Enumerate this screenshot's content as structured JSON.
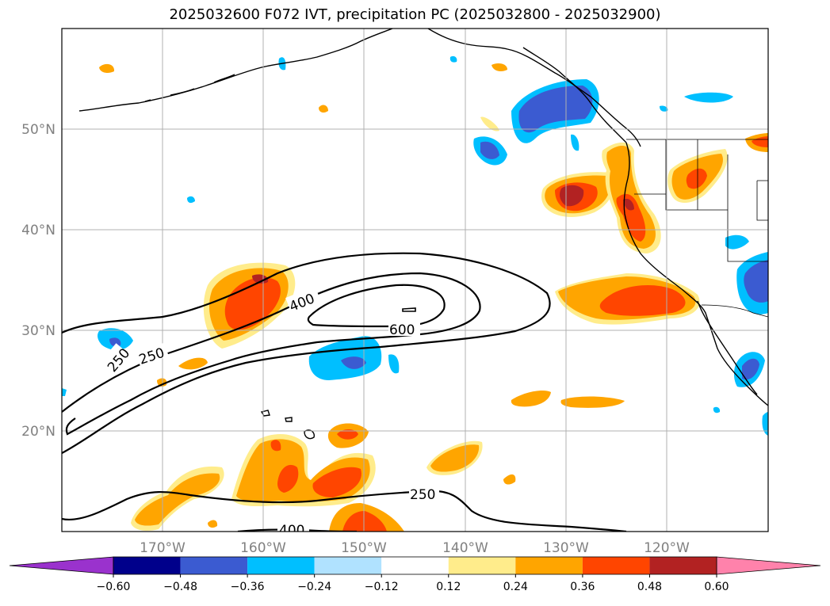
{
  "title": "2025032600 F072 IVT, precipitation PC (2025032800 - 2025032900)",
  "colors": {
    "neg_0": "#9a32cd",
    "neg_1": "#00008b",
    "neg_2": "#3b5bd1",
    "neg_3": "#00bfff",
    "neg_4": "#b0e2ff",
    "zero": "#ffffff",
    "pos_1": "#ffec8b",
    "pos_2": "#ffa500",
    "pos_3": "#ff4500",
    "pos_4": "#b22222",
    "pos_5": "#ff82ab"
  },
  "chart_data": {
    "type": "map-contour",
    "title": "2025032600 F072 IVT, precipitation PC (2025032800 - 2025032900)",
    "x_ticks": [
      "170°W",
      "160°W",
      "150°W",
      "140°W",
      "130°W",
      "120°W"
    ],
    "y_ticks": [
      "50°N",
      "40°N",
      "30°N",
      "20°N"
    ],
    "lon_range": [
      -180,
      -110
    ],
    "lat_range": [
      10,
      60
    ],
    "grid": true,
    "colorbar": {
      "levels": [
        -0.6,
        -0.48,
        -0.36,
        -0.24,
        -0.12,
        0.12,
        0.24,
        0.36,
        0.48,
        0.6
      ],
      "labels": [
        "−0.60",
        "−0.48",
        "−0.36",
        "−0.24",
        "−0.12",
        "0.12",
        "0.24",
        "0.36",
        "0.48",
        "0.60"
      ],
      "extend": "both"
    },
    "ivt_contour_labels": [
      "250",
      "250",
      "400",
      "600",
      "250",
      "400"
    ],
    "ivt_contour_levels": [
      250,
      400,
      600
    ]
  }
}
